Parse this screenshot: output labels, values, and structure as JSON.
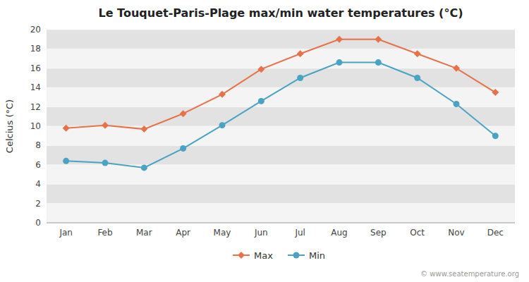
{
  "chart_data": {
    "type": "line",
    "title": "Le Touquet-Paris-Plage max/min water temperatures (°C)",
    "categories": [
      "Jan",
      "Feb",
      "Mar",
      "Apr",
      "May",
      "Jun",
      "Jul",
      "Aug",
      "Sep",
      "Oct",
      "Nov",
      "Dec"
    ],
    "series": [
      {
        "name": "Max",
        "color": "#E8714A",
        "marker": "diamond",
        "values": [
          9.8,
          10.1,
          9.7,
          11.3,
          13.3,
          15.9,
          17.5,
          19.0,
          19.0,
          17.5,
          16.0,
          13.5
        ]
      },
      {
        "name": "Min",
        "color": "#4BA3C3",
        "marker": "circle",
        "values": [
          6.4,
          6.2,
          5.7,
          7.7,
          10.1,
          12.6,
          15.0,
          16.6,
          16.6,
          15.0,
          12.3,
          9.0
        ]
      }
    ],
    "ylabel": "Celcius (°C)",
    "ylim": [
      0,
      20
    ],
    "yticks": [
      0,
      2,
      4,
      6,
      8,
      10,
      12,
      14,
      16,
      18,
      20
    ],
    "grid": true,
    "legend": "bottom",
    "annotations": [
      "© www.seatemperature.org"
    ]
  }
}
